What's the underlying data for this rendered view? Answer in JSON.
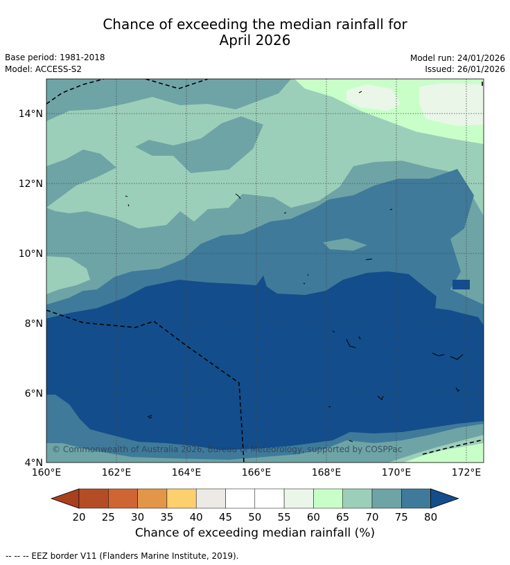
{
  "title": {
    "line1": "Chance of exceeding the median rainfall for",
    "line2": "April 2026"
  },
  "meta": {
    "base_period": "Base period: 1981-2018",
    "model": "Model: ACCESS-S2",
    "model_run": "Model run: 24/01/2026",
    "issued": "Issued: 26/01/2026"
  },
  "map": {
    "lat_labels": [
      "14°N",
      "12°N",
      "10°N",
      "8°N",
      "6°N",
      "4°N"
    ],
    "lon_labels": [
      "160°E",
      "162°E",
      "164°E",
      "166°E",
      "168°E",
      "170°E",
      "172°E"
    ],
    "lon_range": [
      160,
      172.5
    ],
    "lat_range": [
      4,
      15
    ],
    "copyright": "© Commonwealth of Australia 2026, Bureau of Meteorology, supported by COSPPac"
  },
  "colorbar": {
    "labels": [
      "20",
      "25",
      "30",
      "35",
      "40",
      "45",
      "50",
      "55",
      "60",
      "65",
      "70",
      "75",
      "80"
    ],
    "colors": [
      "#a8401f",
      "#b44d26",
      "#cf6533",
      "#e39648",
      "#fecf6d",
      "#ede9e5",
      "#ffffff",
      "#ffffff",
      "#e9f6e8",
      "#c8ffc8",
      "#9ccfb9",
      "#6ea4a6",
      "#3f7a9a",
      "#134d8b"
    ],
    "title": "Chance of exceeding median rainfall (%)"
  },
  "legend": {
    "eez": "--  --  -- EEZ border V11 (Flanders Marine Institute, 2019)."
  }
}
